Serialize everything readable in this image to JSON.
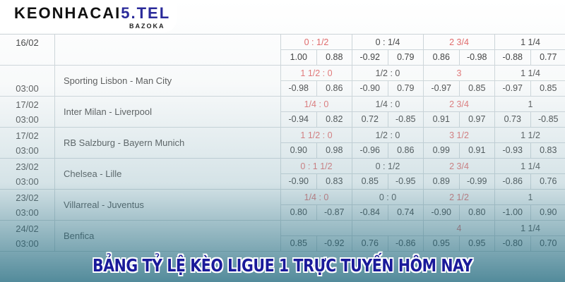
{
  "logo": {
    "text_a": "KEONHACAI",
    "text_b": "5.TEL",
    "sub": "BAZOKA"
  },
  "banner": "BẢNG TỶ LỆ KÈO LIGUE 1 TRỰC TUYẾN HÔM NAY",
  "colors": {
    "red_line": "#e05a5a",
    "banner": "#1a1a9a"
  },
  "matches": [
    {
      "date": "16/02",
      "time": "",
      "name": "",
      "lines": [
        "0 : 1/2",
        "0 : 1/4",
        "2 3/4",
        "1 1/4"
      ],
      "odds": [
        "1.00",
        "0.88",
        "-0.92",
        "0.79",
        "0.86",
        "-0.98",
        "-0.88",
        "0.77"
      ]
    },
    {
      "date": "",
      "time": "03:00",
      "name": "Sporting Lisbon - Man City",
      "lines": [
        "1 1/2 : 0",
        "1/2 : 0",
        "3",
        "1 1/4"
      ],
      "odds": [
        "-0.98",
        "0.86",
        "-0.90",
        "0.79",
        "-0.97",
        "0.85",
        "-0.97",
        "0.85"
      ]
    },
    {
      "date": "17/02",
      "time": "03:00",
      "name": "Inter Milan - Liverpool",
      "lines": [
        "1/4 : 0",
        "1/4 : 0",
        "2 3/4",
        "1"
      ],
      "odds": [
        "-0.94",
        "0.82",
        "0.72",
        "-0.85",
        "0.91",
        "0.97",
        "0.73",
        "-0.85"
      ]
    },
    {
      "date": "17/02",
      "time": "03:00",
      "name": "RB Salzburg - Bayern Munich",
      "lines": [
        "1 1/2 : 0",
        "1/2 : 0",
        "3 1/2",
        "1 1/2"
      ],
      "odds": [
        "0.90",
        "0.98",
        "-0.96",
        "0.86",
        "0.99",
        "0.91",
        "-0.93",
        "0.83"
      ]
    },
    {
      "date": "23/02",
      "time": "03:00",
      "name": "Chelsea - Lille",
      "lines": [
        "0 : 1 1/2",
        "0 : 1/2",
        "2 3/4",
        "1 1/4"
      ],
      "odds": [
        "-0.90",
        "0.83",
        "0.85",
        "-0.95",
        "0.89",
        "-0.99",
        "-0.86",
        "0.76"
      ]
    },
    {
      "date": "23/02",
      "time": "03:00",
      "name": "Villarreal - Juventus",
      "lines": [
        "1/4 : 0",
        "0 : 0",
        "2 1/2",
        "1"
      ],
      "odds": [
        "0.80",
        "-0.87",
        "-0.84",
        "0.74",
        "-0.90",
        "0.80",
        "-1.00",
        "0.90"
      ]
    },
    {
      "date": "24/02",
      "time": "03:00",
      "name": "Benfica",
      "lines": [
        "",
        "",
        "4",
        "1 1/4"
      ],
      "odds": [
        "0.85",
        "-0.92",
        "0.76",
        "-0.86",
        "0.95",
        "0.95",
        "-0.80",
        "0.70"
      ]
    }
  ]
}
